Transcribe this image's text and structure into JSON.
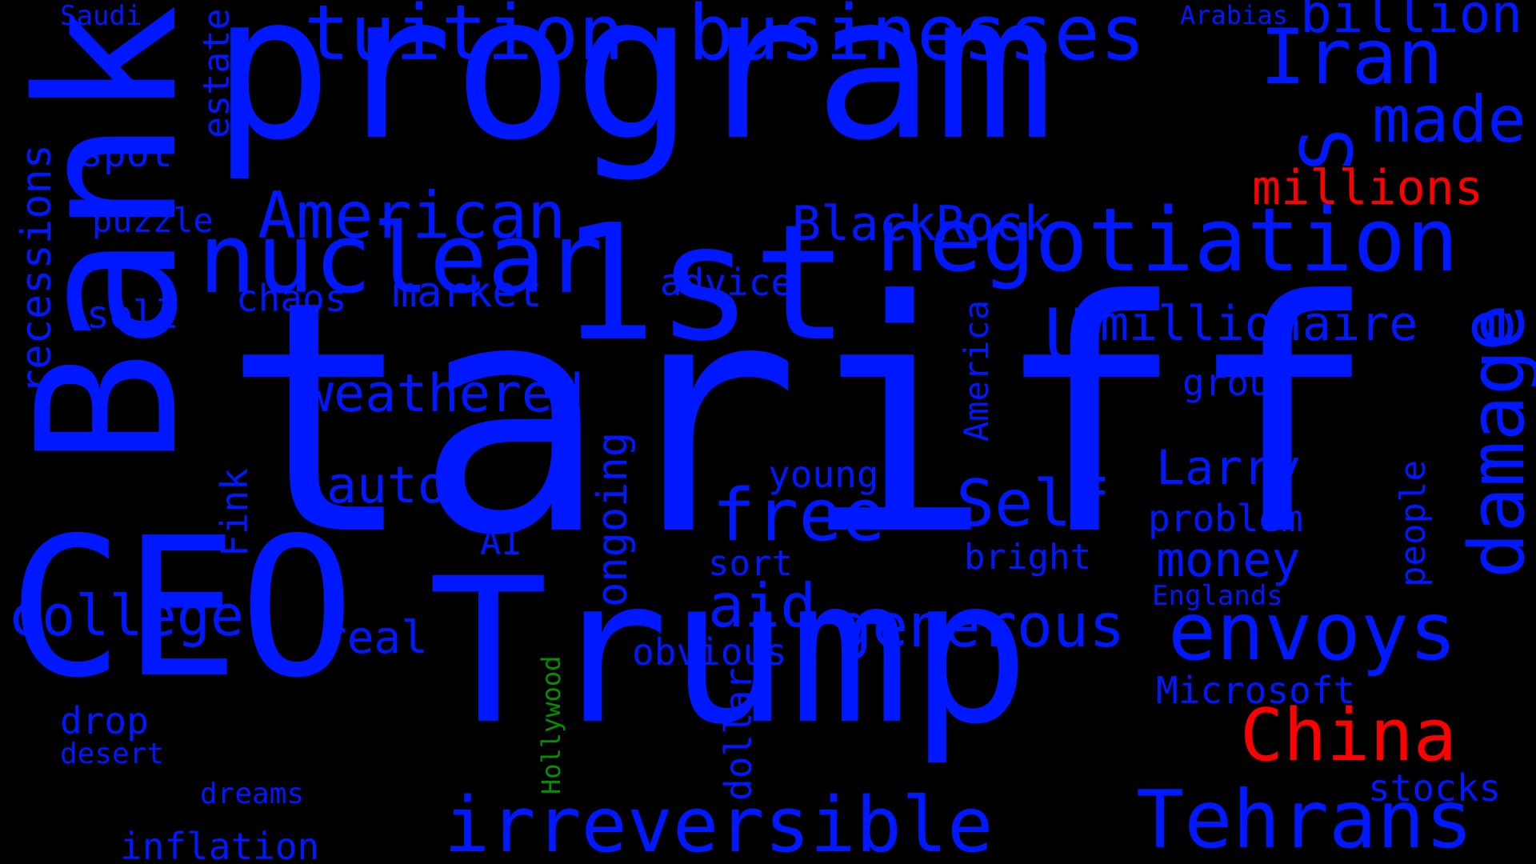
{
  "background": "#000000",
  "colors": {
    "blue": "#0018FF",
    "red": "#FF0000",
    "green": "#009000"
  },
  "words": [
    {
      "text": "tariff",
      "color": "blue"
    },
    {
      "text": "program",
      "color": "blue"
    },
    {
      "text": "Trump",
      "color": "blue"
    },
    {
      "text": "Bank",
      "color": "blue"
    },
    {
      "text": "CEO",
      "color": "blue"
    },
    {
      "text": "1st",
      "color": "blue"
    },
    {
      "text": "nuclear",
      "color": "blue"
    },
    {
      "text": "negotiation",
      "color": "blue"
    },
    {
      "text": "American",
      "color": "blue"
    },
    {
      "text": "tuition",
      "color": "blue"
    },
    {
      "text": "businesses",
      "color": "blue"
    },
    {
      "text": "Iran",
      "color": "blue"
    },
    {
      "text": "billion",
      "color": "blue"
    },
    {
      "text": "made",
      "color": "blue"
    },
    {
      "text": "millions",
      "color": "red"
    },
    {
      "text": "China",
      "color": "red"
    },
    {
      "text": "envoys",
      "color": "blue"
    },
    {
      "text": "Tehrans",
      "color": "blue"
    },
    {
      "text": "irreversible",
      "color": "blue"
    },
    {
      "text": "generous",
      "color": "blue"
    },
    {
      "text": "damage",
      "color": "blue"
    },
    {
      "text": "Self",
      "color": "blue"
    },
    {
      "text": "free",
      "color": "blue"
    },
    {
      "text": "aid",
      "color": "blue"
    },
    {
      "text": "money",
      "color": "blue"
    },
    {
      "text": "Larry",
      "color": "blue"
    },
    {
      "text": "college",
      "color": "blue"
    },
    {
      "text": "weathered",
      "color": "blue"
    },
    {
      "text": "auto",
      "color": "blue"
    },
    {
      "text": "BlackRock",
      "color": "blue"
    },
    {
      "text": "millionaire",
      "color": "blue"
    },
    {
      "text": "U",
      "color": "blue"
    },
    {
      "text": "S",
      "color": "blue"
    },
    {
      "text": "e",
      "color": "blue"
    },
    {
      "text": "market",
      "color": "blue"
    },
    {
      "text": "chaos",
      "color": "blue"
    },
    {
      "text": "advice",
      "color": "blue"
    },
    {
      "text": "sell",
      "color": "blue"
    },
    {
      "text": "spot",
      "color": "blue"
    },
    {
      "text": "puzzle",
      "color": "blue"
    },
    {
      "text": "recessions",
      "color": "blue"
    },
    {
      "text": "estate",
      "color": "blue"
    },
    {
      "text": "Saudi",
      "color": "blue"
    },
    {
      "text": "Arabias",
      "color": "blue"
    },
    {
      "text": "group",
      "color": "blue"
    },
    {
      "text": "young",
      "color": "blue"
    },
    {
      "text": "problem",
      "color": "blue"
    },
    {
      "text": "bright",
      "color": "blue"
    },
    {
      "text": "sort",
      "color": "blue"
    },
    {
      "text": "AI",
      "color": "blue"
    },
    {
      "text": "Englands",
      "color": "blue"
    },
    {
      "text": "people",
      "color": "blue"
    },
    {
      "text": "America",
      "color": "blue"
    },
    {
      "text": "ongoing",
      "color": "blue"
    },
    {
      "text": "Fink",
      "color": "blue"
    },
    {
      "text": "real",
      "color": "blue"
    },
    {
      "text": "obvious",
      "color": "blue"
    },
    {
      "text": "Microsoft",
      "color": "blue"
    },
    {
      "text": "stocks",
      "color": "blue"
    },
    {
      "text": "drop",
      "color": "blue"
    },
    {
      "text": "desert",
      "color": "blue"
    },
    {
      "text": "dreams",
      "color": "blue"
    },
    {
      "text": "inflation",
      "color": "blue"
    },
    {
      "text": "dollar",
      "color": "blue"
    },
    {
      "text": "Hollywood",
      "color": "green"
    }
  ]
}
